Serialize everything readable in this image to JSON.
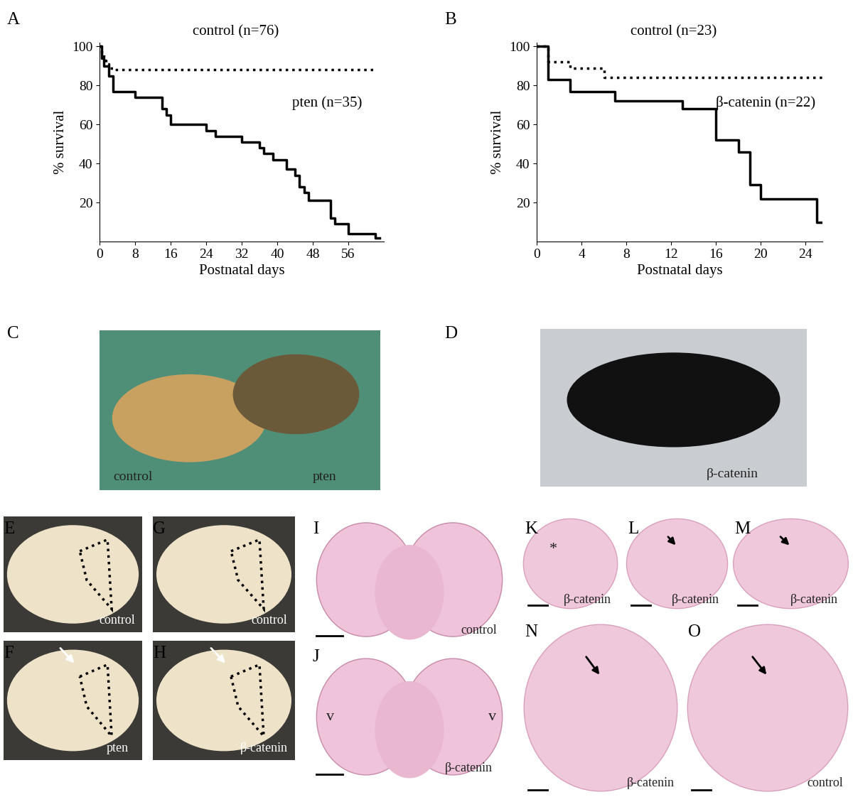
{
  "chart_data": [
    {
      "type": "line",
      "panel": "A",
      "x_label": "Postnatal days",
      "y_label": "% survival",
      "xlim": [
        0,
        64
      ],
      "xticks": [
        0,
        8,
        16,
        24,
        32,
        40,
        48,
        56
      ],
      "ylim": [
        0,
        102
      ],
      "yticks": [
        20,
        40,
        60,
        80,
        100
      ],
      "series": [
        {
          "name": "control (n=76)",
          "color": "#000000",
          "line_style": "dotted",
          "x": [
            0,
            0.5,
            1,
            1.5,
            2,
            3,
            62
          ],
          "values": [
            100,
            96,
            93,
            91,
            89,
            88,
            88
          ]
        },
        {
          "name": "pten (n=35)",
          "color": "#000000",
          "line_style": "solid",
          "x": [
            0,
            0.5,
            1,
            2,
            3,
            8,
            14,
            15,
            16,
            24,
            26,
            32,
            36,
            37,
            39,
            42,
            44,
            45,
            46,
            47,
            52,
            53,
            56,
            62,
            63
          ],
          "values": [
            100,
            94,
            90,
            85,
            77,
            74,
            68,
            65,
            60,
            57,
            54,
            51,
            48,
            45,
            42,
            37,
            34,
            28,
            25,
            21,
            12,
            9,
            4,
            2,
            2
          ]
        }
      ]
    },
    {
      "type": "line",
      "panel": "B",
      "x_label": "Postnatal days",
      "y_label": "% survival",
      "xlim": [
        0,
        25.5
      ],
      "xticks": [
        0,
        4,
        8,
        12,
        16,
        20,
        24
      ],
      "ylim": [
        0,
        102
      ],
      "yticks": [
        20,
        40,
        60,
        80,
        100
      ],
      "series": [
        {
          "name": "control (n=23)",
          "color": "#000000",
          "line_style": "dotted",
          "x": [
            0,
            1,
            3,
            6,
            25.5
          ],
          "values": [
            100,
            92,
            89,
            84,
            84
          ]
        },
        {
          "name": "β-catenin (n=22)",
          "color": "#000000",
          "line_style": "solid",
          "x": [
            0,
            1,
            3,
            7,
            13,
            16,
            18,
            19,
            20,
            25,
            25.5
          ],
          "values": [
            100,
            83,
            77,
            72,
            68,
            52,
            46,
            29,
            22,
            10,
            10
          ]
        }
      ]
    }
  ],
  "image_panels": [
    {
      "panel": "C",
      "labels": [
        "control",
        "pten"
      ]
    },
    {
      "panel": "D",
      "labels": [
        "β-catenin"
      ]
    },
    {
      "panel": "E",
      "labels": [
        "control"
      ]
    },
    {
      "panel": "F",
      "labels": [
        "pten"
      ]
    },
    {
      "panel": "G",
      "labels": [
        "control"
      ]
    },
    {
      "panel": "H",
      "labels": [
        "β-catenin"
      ]
    },
    {
      "panel": "I",
      "labels": [
        "control"
      ]
    },
    {
      "panel": "J",
      "labels": [
        "β-catenin",
        "v",
        "v"
      ]
    },
    {
      "panel": "K",
      "labels": [
        "β-catenin",
        "*"
      ]
    },
    {
      "panel": "L",
      "labels": [
        "β-catenin"
      ]
    },
    {
      "panel": "M",
      "labels": [
        "β-catenin"
      ]
    },
    {
      "panel": "N",
      "labels": [
        "β-catenin"
      ]
    },
    {
      "panel": "O",
      "labels": [
        "control"
      ]
    }
  ]
}
